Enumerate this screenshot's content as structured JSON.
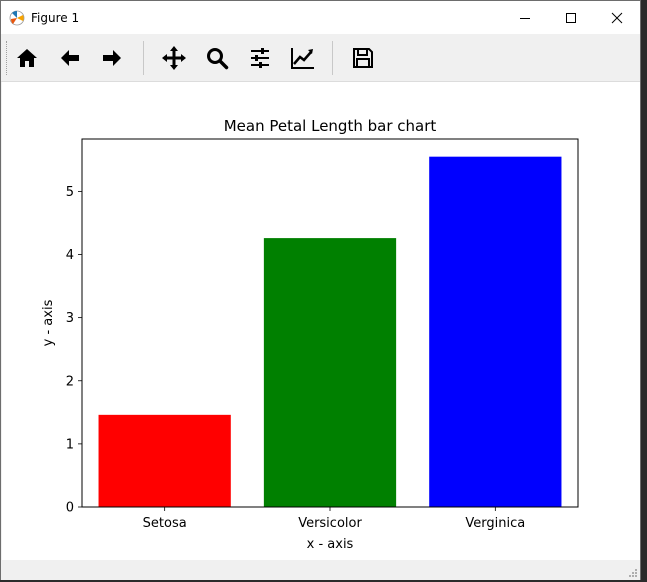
{
  "window": {
    "title": "Figure 1"
  },
  "toolbar": {
    "buttons": [
      {
        "icon": "home-icon"
      },
      {
        "icon": "back-arrow-icon"
      },
      {
        "icon": "forward-arrow-icon"
      },
      {
        "icon": "pan-icon"
      },
      {
        "icon": "zoom-icon"
      },
      {
        "icon": "subplots-sliders-icon"
      },
      {
        "icon": "edit-axis-icon"
      },
      {
        "icon": "save-icon"
      }
    ]
  },
  "chart_data": {
    "type": "bar",
    "title": "Mean Petal Length bar chart",
    "xlabel": "x - axis",
    "ylabel": "y - axis",
    "categories": [
      "Setosa",
      "Versicolor",
      "Verginica"
    ],
    "values": [
      1.46,
      4.26,
      5.55
    ],
    "colors": [
      "#ff0000",
      "#008000",
      "#0000ff"
    ],
    "ylim": [
      0,
      5.83
    ],
    "yticks": [
      "0",
      "1",
      "2",
      "3",
      "4",
      "5"
    ],
    "grid": false
  }
}
